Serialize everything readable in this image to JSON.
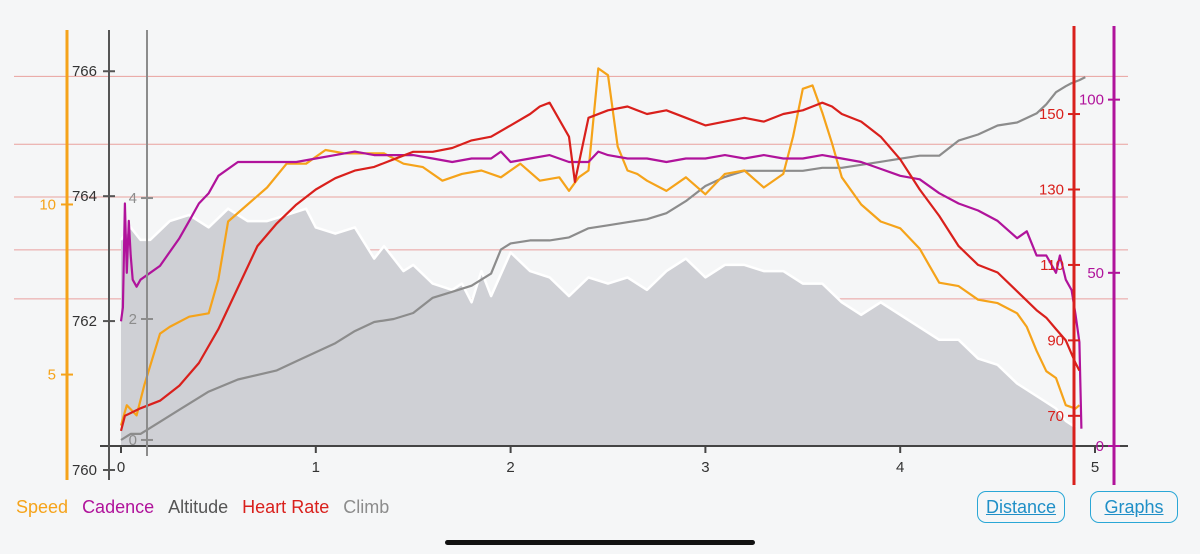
{
  "chart_data": {
    "type": "line",
    "xlabel": "",
    "x_ticks": [
      0,
      1,
      2,
      3,
      4,
      5
    ],
    "xlim": [
      0,
      5
    ],
    "axes": {
      "altitude": {
        "ticks": [
          760,
          762,
          764,
          766
        ],
        "range": [
          760,
          766.1
        ],
        "color": "#555555"
      },
      "speed": {
        "ticks": [
          5,
          10
        ],
        "range": [
          2.9,
          14.1
        ],
        "color": "#f5a31a"
      },
      "climb": {
        "ticks": [
          0,
          2,
          4
        ],
        "range": [
          -0.1,
          6.2
        ],
        "color": "#8c8c8c"
      },
      "heart_rate": {
        "ticks": [
          70,
          90,
          110,
          130,
          150
        ],
        "range": [
          62,
          163
        ],
        "color": "#d9201c"
      },
      "cadence": {
        "ticks": [
          0,
          50,
          100
        ],
        "range": [
          0,
          110
        ],
        "color": "#b0139b"
      }
    },
    "hr_zone_lines": [
      101,
      114,
      128,
      142
    ],
    "series": [
      {
        "name": "Altitude",
        "axis": "altitude",
        "color": "#ffffff",
        "fill": "#cfd0d5",
        "x": [
          0,
          0.05,
          0.1,
          0.15,
          0.25,
          0.35,
          0.45,
          0.55,
          0.6,
          0.65,
          0.75,
          0.85,
          0.95,
          1.0,
          1.1,
          1.2,
          1.3,
          1.35,
          1.45,
          1.5,
          1.6,
          1.7,
          1.75,
          1.8,
          1.85,
          1.9,
          2.0,
          2.1,
          2.2,
          2.3,
          2.4,
          2.5,
          2.6,
          2.7,
          2.8,
          2.9,
          3.0,
          3.1,
          3.2,
          3.3,
          3.4,
          3.5,
          3.6,
          3.7,
          3.8,
          3.9,
          4.0,
          4.1,
          4.2,
          4.3,
          4.4,
          4.5,
          4.6,
          4.7,
          4.8,
          4.85,
          4.9
        ],
        "y": [
          763.3,
          763.5,
          763.3,
          763.3,
          763.6,
          763.7,
          763.5,
          763.8,
          763.7,
          763.6,
          763.6,
          763.7,
          763.8,
          763.5,
          763.4,
          763.5,
          763.0,
          763.2,
          762.8,
          762.9,
          762.6,
          762.5,
          762.6,
          762.3,
          762.8,
          762.4,
          763.1,
          762.8,
          762.7,
          762.4,
          762.7,
          762.6,
          762.7,
          762.5,
          762.8,
          763.0,
          762.7,
          762.9,
          762.9,
          762.8,
          762.8,
          762.6,
          762.6,
          762.3,
          762.1,
          762.3,
          762.1,
          761.9,
          761.7,
          761.7,
          761.4,
          761.3,
          761.0,
          760.8,
          760.6,
          760.4,
          760.3
        ]
      },
      {
        "name": "Climb",
        "axis": "climb",
        "color": "#8c8c8c",
        "x": [
          0,
          0.05,
          0.1,
          0.2,
          0.3,
          0.45,
          0.6,
          0.8,
          0.9,
          1.0,
          1.1,
          1.2,
          1.3,
          1.4,
          1.5,
          1.6,
          1.7,
          1.8,
          1.9,
          1.95,
          2.0,
          2.1,
          2.2,
          2.3,
          2.4,
          2.5,
          2.6,
          2.7,
          2.8,
          2.9,
          3.0,
          3.1,
          3.2,
          3.3,
          3.4,
          3.5,
          3.6,
          3.7,
          3.8,
          3.9,
          4.0,
          4.1,
          4.2,
          4.3,
          4.4,
          4.5,
          4.6,
          4.7,
          4.75,
          4.8,
          4.85,
          4.88,
          4.92,
          4.95
        ],
        "y": [
          0.0,
          0.1,
          0.1,
          0.3,
          0.5,
          0.8,
          1.0,
          1.15,
          1.3,
          1.45,
          1.6,
          1.8,
          1.95,
          2.0,
          2.1,
          2.35,
          2.45,
          2.55,
          2.75,
          3.15,
          3.25,
          3.3,
          3.3,
          3.35,
          3.5,
          3.55,
          3.6,
          3.65,
          3.75,
          3.95,
          4.2,
          4.35,
          4.45,
          4.45,
          4.45,
          4.45,
          4.5,
          4.5,
          4.55,
          4.6,
          4.65,
          4.7,
          4.7,
          4.95,
          5.05,
          5.2,
          5.25,
          5.4,
          5.55,
          5.75,
          5.85,
          5.9,
          5.95,
          6.0
        ]
      },
      {
        "name": "Speed",
        "axis": "speed",
        "color": "#f5a31a",
        "x": [
          0,
          0.03,
          0.08,
          0.12,
          0.2,
          0.25,
          0.35,
          0.45,
          0.5,
          0.55,
          0.65,
          0.75,
          0.85,
          0.95,
          1.05,
          1.15,
          1.25,
          1.35,
          1.45,
          1.55,
          1.65,
          1.75,
          1.85,
          1.95,
          2.05,
          2.15,
          2.25,
          2.3,
          2.35,
          2.4,
          2.45,
          2.5,
          2.55,
          2.6,
          2.65,
          2.7,
          2.8,
          2.9,
          3.0,
          3.1,
          3.2,
          3.3,
          3.4,
          3.45,
          3.5,
          3.55,
          3.6,
          3.65,
          3.7,
          3.8,
          3.9,
          4.0,
          4.1,
          4.15,
          4.2,
          4.3,
          4.4,
          4.5,
          4.6,
          4.65,
          4.7,
          4.75,
          4.8,
          4.85,
          4.9,
          4.92
        ],
        "y": [
          3.5,
          4.1,
          3.8,
          4.7,
          6.2,
          6.4,
          6.7,
          6.8,
          7.8,
          9.5,
          10.0,
          10.5,
          11.2,
          11.2,
          11.6,
          11.5,
          11.5,
          11.5,
          11.2,
          11.1,
          10.7,
          10.9,
          11.0,
          10.8,
          11.2,
          10.7,
          10.8,
          10.4,
          10.8,
          11.0,
          14.0,
          13.8,
          11.7,
          11.0,
          10.9,
          10.7,
          10.4,
          10.8,
          10.3,
          10.9,
          11.0,
          10.5,
          10.9,
          12.0,
          13.4,
          13.5,
          12.7,
          11.8,
          10.8,
          10.0,
          9.5,
          9.3,
          8.7,
          8.2,
          7.7,
          7.6,
          7.2,
          7.1,
          6.8,
          6.4,
          5.7,
          5.1,
          4.9,
          4.1,
          4.0,
          4.1
        ]
      },
      {
        "name": "Cadence",
        "axis": "cadence",
        "color": "#b0139b",
        "x": [
          0,
          0.01,
          0.02,
          0.03,
          0.04,
          0.05,
          0.06,
          0.08,
          0.1,
          0.15,
          0.2,
          0.25,
          0.3,
          0.35,
          0.4,
          0.45,
          0.5,
          0.6,
          0.7,
          0.8,
          0.9,
          1.0,
          1.1,
          1.2,
          1.3,
          1.4,
          1.5,
          1.6,
          1.7,
          1.8,
          1.9,
          1.95,
          2.0,
          2.1,
          2.2,
          2.3,
          2.4,
          2.45,
          2.5,
          2.6,
          2.7,
          2.8,
          2.9,
          3.0,
          3.1,
          3.2,
          3.3,
          3.4,
          3.5,
          3.6,
          3.7,
          3.8,
          3.9,
          4.0,
          4.1,
          4.2,
          4.3,
          4.4,
          4.5,
          4.6,
          4.65,
          4.7,
          4.75,
          4.8,
          4.82,
          4.85,
          4.88,
          4.9,
          4.92,
          4.93
        ],
        "y": [
          36,
          40,
          70,
          50,
          65,
          55,
          48,
          46,
          48,
          50,
          52,
          56,
          60,
          65,
          70,
          73,
          78,
          82,
          82,
          82,
          82,
          83,
          84,
          85,
          84,
          84,
          84,
          83,
          82,
          83,
          83,
          85,
          82,
          83,
          84,
          82,
          82,
          85,
          84,
          83,
          83,
          82,
          83,
          83,
          84,
          83,
          84,
          83,
          83,
          84,
          83,
          82,
          80,
          78,
          77,
          73,
          70,
          68,
          65,
          60,
          62,
          55,
          55,
          50,
          55,
          48,
          45,
          38,
          30,
          5
        ]
      },
      {
        "name": "Heart Rate",
        "axis": "heart_rate",
        "color": "#d9201c",
        "x": [
          0,
          0.02,
          0.1,
          0.2,
          0.3,
          0.4,
          0.5,
          0.6,
          0.7,
          0.8,
          0.9,
          1.0,
          1.1,
          1.2,
          1.3,
          1.4,
          1.5,
          1.6,
          1.7,
          1.8,
          1.9,
          2.0,
          2.1,
          2.15,
          2.2,
          2.3,
          2.33,
          2.4,
          2.5,
          2.6,
          2.7,
          2.8,
          2.9,
          3.0,
          3.1,
          3.2,
          3.3,
          3.4,
          3.5,
          3.55,
          3.6,
          3.65,
          3.7,
          3.8,
          3.9,
          4.0,
          4.1,
          4.2,
          4.3,
          4.4,
          4.5,
          4.6,
          4.7,
          4.75,
          4.8,
          4.85,
          4.9,
          4.92
        ],
        "y": [
          66,
          70,
          72,
          74,
          78,
          84,
          93,
          104,
          115,
          121,
          126,
          130,
          133,
          135,
          136,
          138,
          140,
          140,
          141,
          143,
          144,
          147,
          150,
          152,
          153,
          144,
          132,
          149,
          151,
          152,
          150,
          151,
          149,
          147,
          148,
          149,
          148,
          150,
          151,
          152,
          153,
          152,
          150,
          148,
          144,
          138,
          130,
          123,
          115,
          110,
          108,
          103,
          98,
          96,
          93,
          90,
          84,
          82
        ]
      }
    ]
  },
  "legend": {
    "speed": "Speed",
    "cadence": "Cadence",
    "altitude": "Altitude",
    "heart_rate": "Heart Rate",
    "climb": "Climb"
  },
  "buttons": {
    "distance": "Distance",
    "graphs": "Graphs"
  },
  "colors": {
    "speed": "#f5a31a",
    "cadence": "#b0139b",
    "altitude": "#555555",
    "heart_rate": "#d9201c",
    "climb": "#8c8c8c",
    "link": "#1f8fc7"
  }
}
